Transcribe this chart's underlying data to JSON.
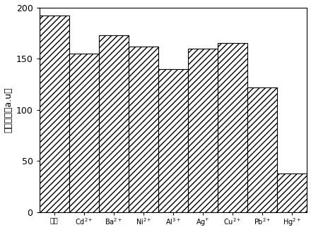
{
  "categories": [
    "空白",
    "Cd²⁺",
    "Ba²⁺",
    "Ni²⁺",
    "Al³⁺",
    "Ag⁺",
    "Cu²⁺",
    "Pb²⁺",
    "Hg²⁺"
  ],
  "cat_labels": [
    "空白",
    "Cd$^{2+}$",
    "Ba$^{2+}$",
    "Ni$^{2+}$",
    "Al$^{3+}$",
    "Ag$^{+}$",
    "Cu$^{2+}$",
    "Pb$^{2+}$",
    "Hg$^{2+}$"
  ],
  "values": [
    192,
    155,
    173,
    162,
    140,
    160,
    165,
    122,
    38
  ],
  "bar_color": "#ffffff",
  "edge_color": "#000000",
  "hatch": "////",
  "ylabel": "荧光强度（a.u）",
  "ylim": [
    0,
    200
  ],
  "yticks": [
    0,
    50,
    100,
    150,
    200
  ],
  "figsize": [
    4.4,
    3.29
  ],
  "dpi": 100,
  "bar_width": 1.0
}
